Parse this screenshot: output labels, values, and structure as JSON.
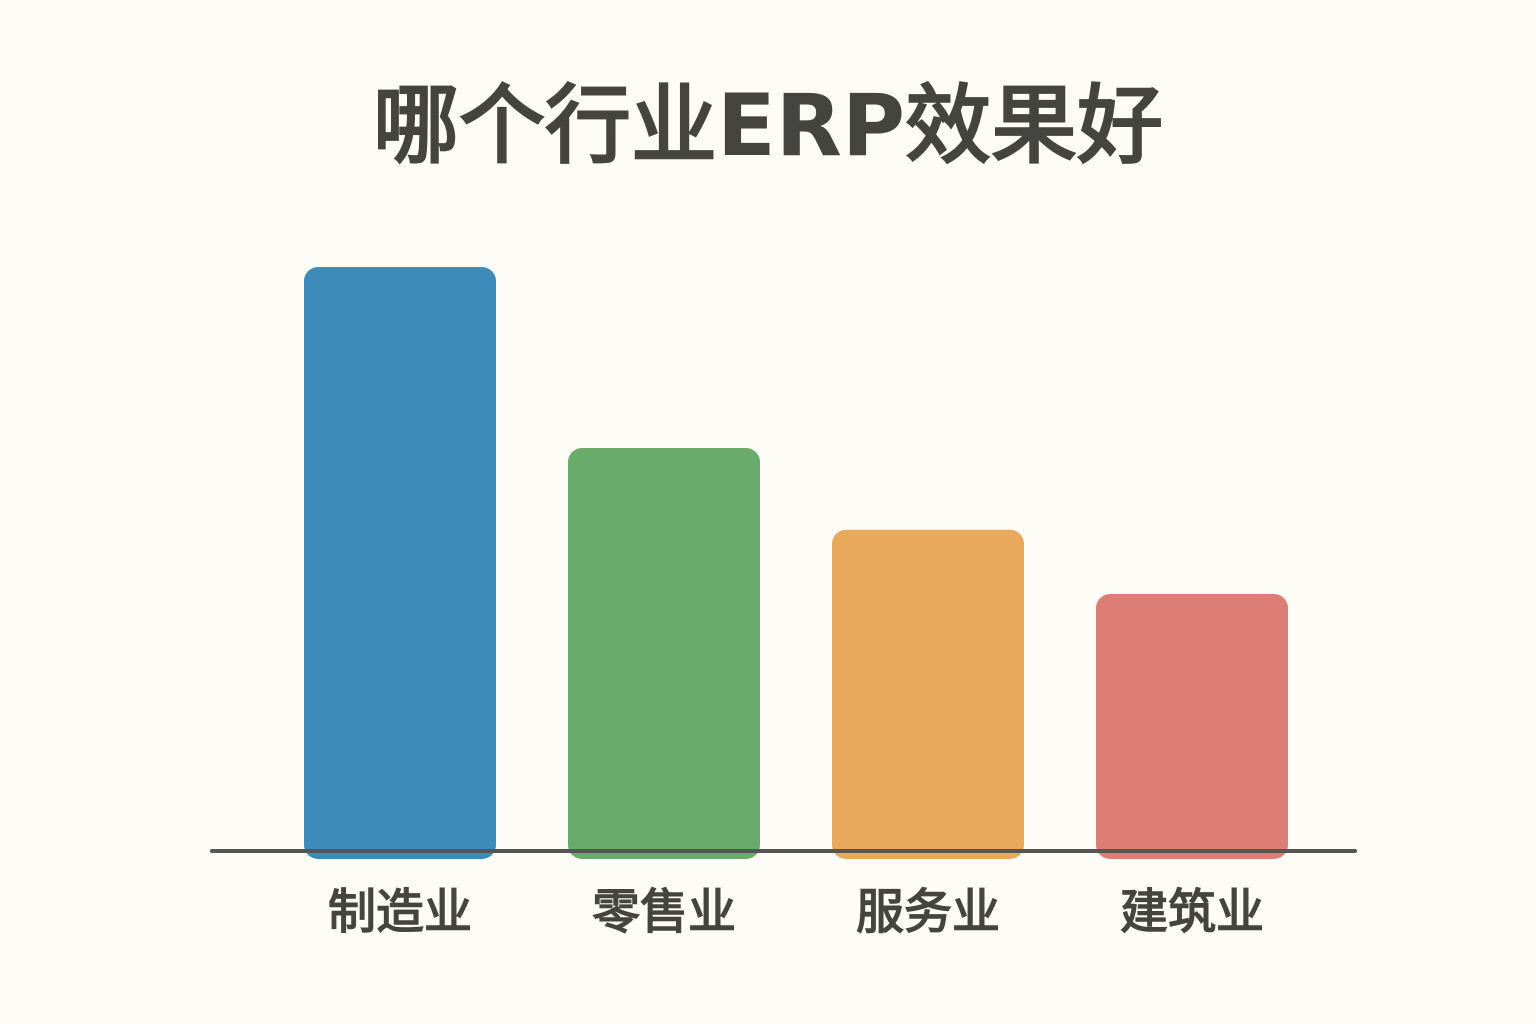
{
  "chart_data": {
    "type": "bar",
    "title": "哪个行业ERP效果好",
    "categories": [
      "制造业",
      "零售业",
      "服务业",
      "建筑业"
    ],
    "values": [
      100,
      69,
      55,
      44
    ],
    "colors": [
      "#3d8bb8",
      "#69ab6b",
      "#e8aa5a",
      "#dc7d76"
    ]
  }
}
